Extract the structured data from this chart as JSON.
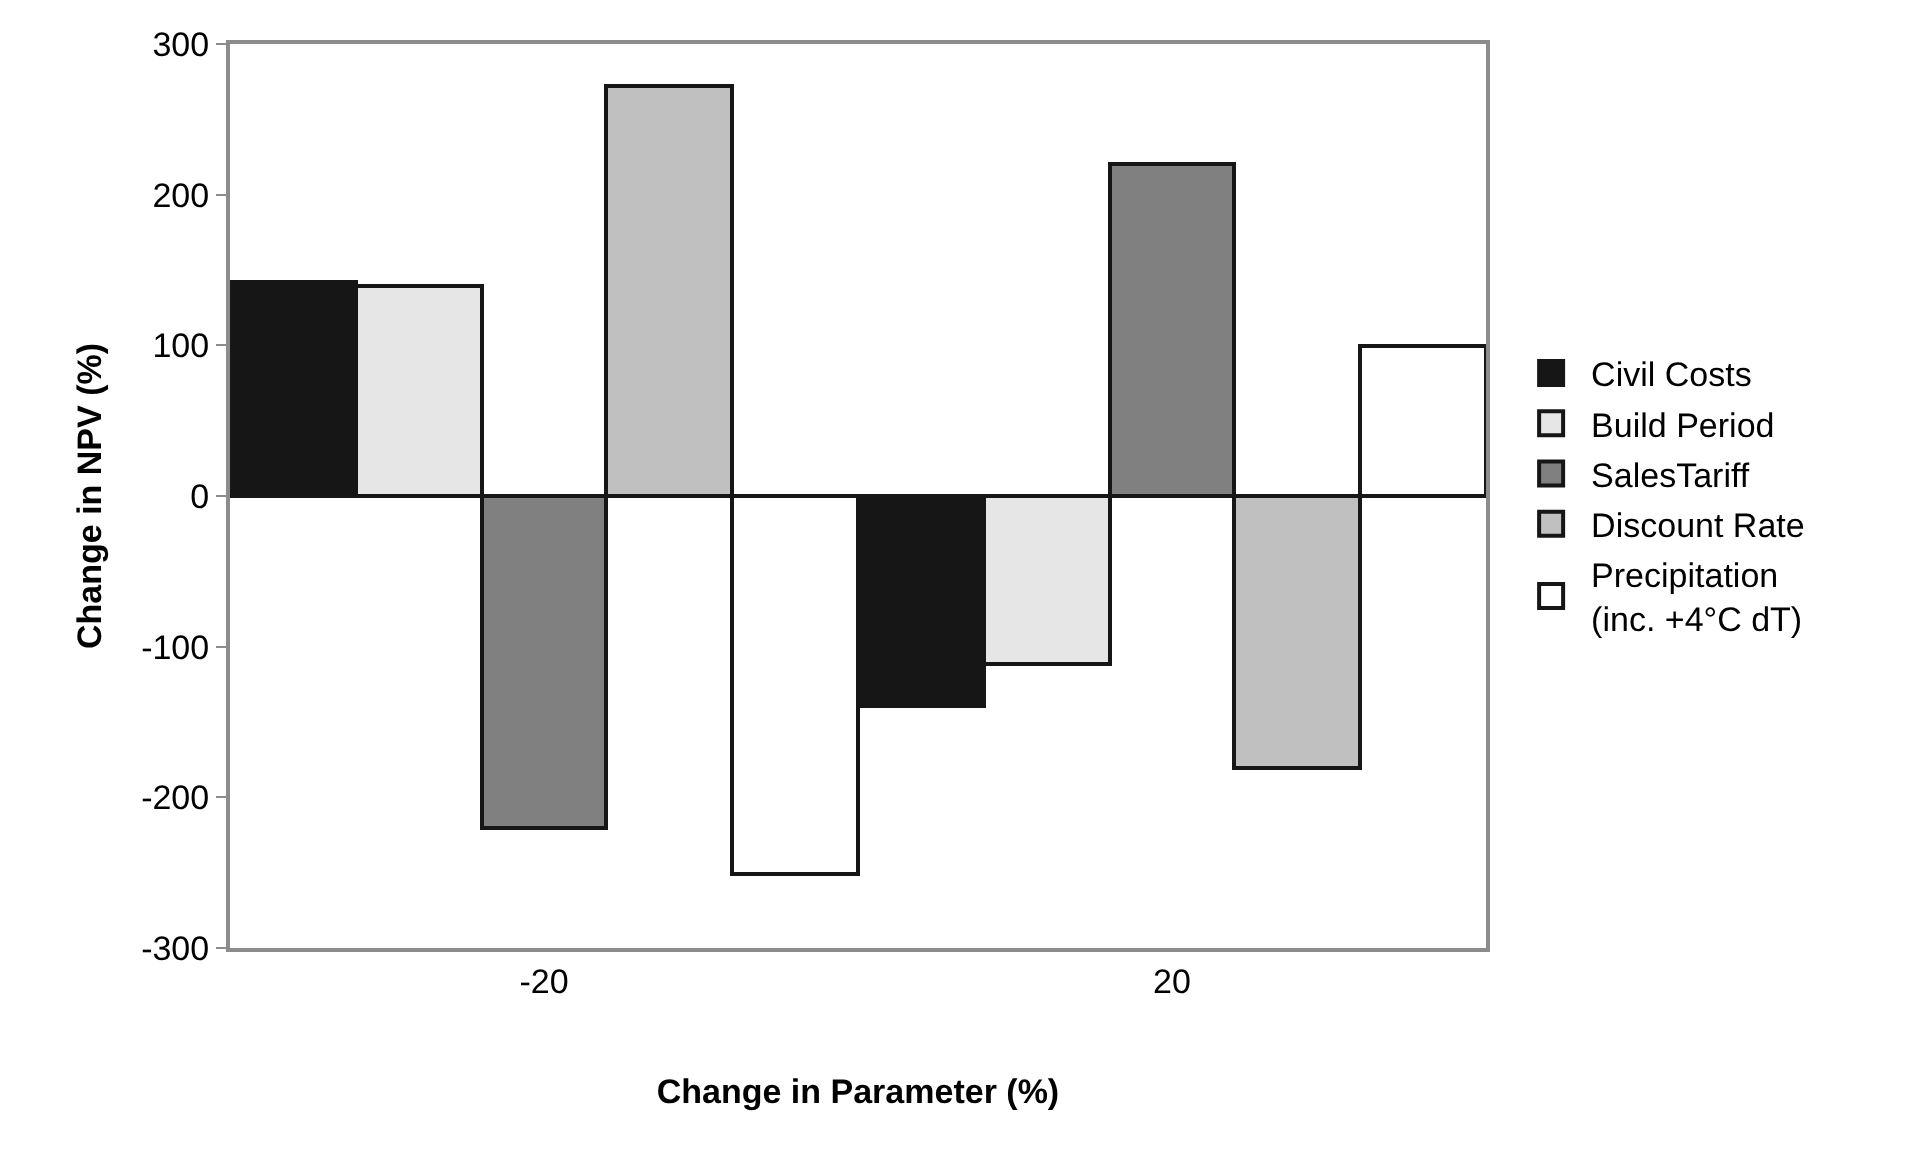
{
  "chart_data": {
    "type": "bar",
    "xlabel": "Change in Parameter (%)",
    "ylabel": "Change in NPV (%)",
    "categories": [
      "-20",
      "20"
    ],
    "series": [
      {
        "name": "Civil Costs",
        "color": "#161616",
        "values": [
          142,
          -140
        ]
      },
      {
        "name": "Build Period",
        "color": "#e6e6e6",
        "values": [
          139,
          -112
        ]
      },
      {
        "name": "SalesTariff",
        "color": "#808080",
        "values": [
          -220,
          220
        ]
      },
      {
        "name": "Discount Rate",
        "color": "#c0c0c0",
        "values": [
          272,
          -180
        ]
      },
      {
        "name": "Precipitation\n(inc. +4°C dT)",
        "color": "#ffffff",
        "values": [
          -251,
          100
        ]
      }
    ],
    "ylim": [
      -300,
      300
    ],
    "yticks": [
      -300,
      -200,
      -100,
      0,
      100,
      200,
      300
    ],
    "legend": "right"
  }
}
